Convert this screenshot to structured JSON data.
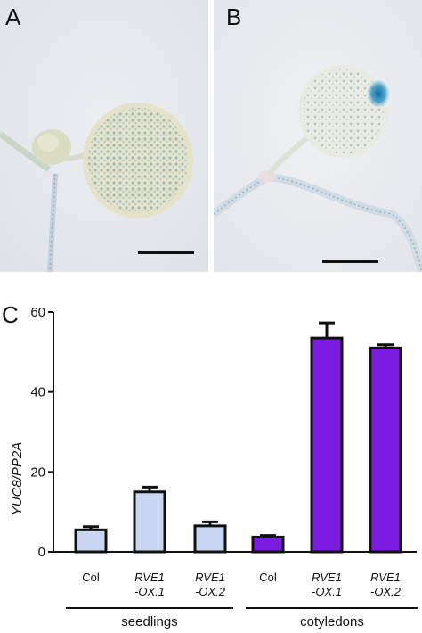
{
  "panels": {
    "a": {
      "label": "A"
    },
    "b": {
      "label": "B"
    },
    "c": {
      "label": "C"
    }
  },
  "colors": {
    "seedlings_bar": "#c8d6f2",
    "cotyledons_bar": "#7b1ce0",
    "stain": "#5f9fb8",
    "background_photo": "#e6e8ec"
  },
  "chart_data": {
    "type": "bar",
    "ylabel": "YUC8/PP2A",
    "ylim": [
      0,
      60
    ],
    "yticks": [
      "0",
      "20",
      "40",
      "60"
    ],
    "categories": [
      {
        "line1": "Col",
        "line2": ""
      },
      {
        "line1": "RVE1",
        "line2": "-OX.1"
      },
      {
        "line1": "RVE1",
        "line2": "-OX.2"
      },
      {
        "line1": "Col",
        "line2": ""
      },
      {
        "line1": "RVE1",
        "line2": "-OX.1"
      },
      {
        "line1": "RVE1",
        "line2": "-OX.2"
      }
    ],
    "values": [
      5.5,
      15,
      6.5,
      3.7,
      53.5,
      51
    ],
    "errors": [
      0.8,
      1.2,
      1.0,
      0.4,
      3.8,
      0.8
    ],
    "groups": [
      {
        "name": "seedlings",
        "indices": [
          0,
          1,
          2
        ]
      },
      {
        "name": "cotyledons",
        "indices": [
          3,
          4,
          5
        ]
      }
    ]
  }
}
